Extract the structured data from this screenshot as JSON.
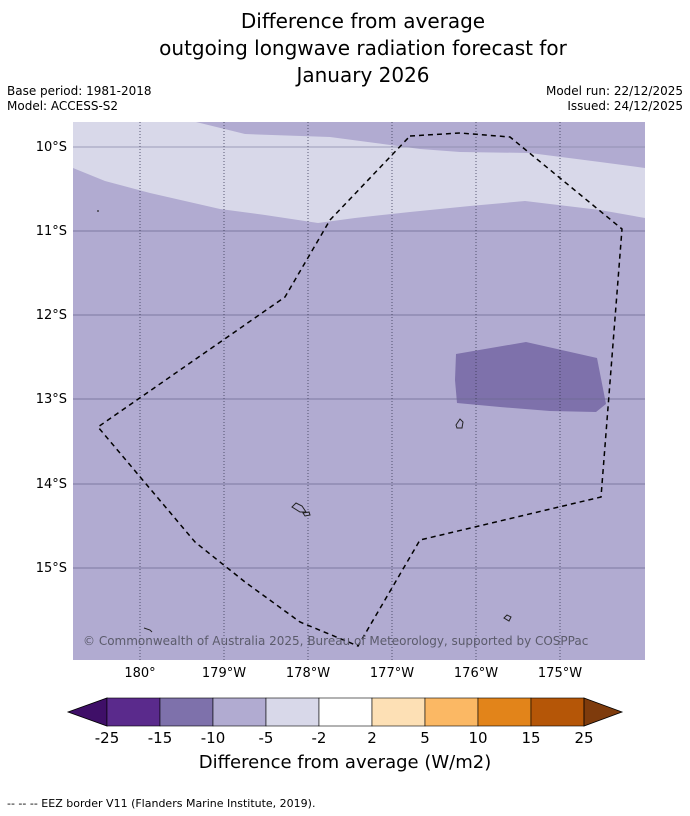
{
  "title": {
    "line1": "Difference from average",
    "line2": "outgoing longwave radiation forecast for",
    "line3": "January 2026"
  },
  "meta": {
    "base_period": "Base period: 1981-2018",
    "model": "Model: ACCESS-S2",
    "model_run": "Model run: 22/12/2025",
    "issued": "Issued: 24/12/2025"
  },
  "map": {
    "lat_labels": [
      "10°S",
      "11°S",
      "12°S",
      "13°S",
      "14°S",
      "15°S"
    ],
    "lon_labels": [
      "180°",
      "179°W",
      "178°W",
      "177°W",
      "176°W",
      "175°W"
    ],
    "copyright": "© Commonwealth of Australia 2025, Bureau of Meteorology, supported by COSPPac"
  },
  "colorbar": {
    "title": "Difference from average (W/m2)",
    "ticks": [
      "-25",
      "-15",
      "-10",
      "-5",
      "-2",
      "2",
      "5",
      "10",
      "15",
      "25"
    ],
    "colors": [
      "#3f0f68",
      "#5a2a8c",
      "#7e71ab",
      "#b1abd1",
      "#d8d8e9",
      "#ffffff",
      "#fde0b5",
      "#fbb864",
      "#e2841a",
      "#b55607",
      "#7e3b0c"
    ]
  },
  "footnote": "--  --  -- EEZ border V11 (Flanders Marine Institute, 2019)."
}
